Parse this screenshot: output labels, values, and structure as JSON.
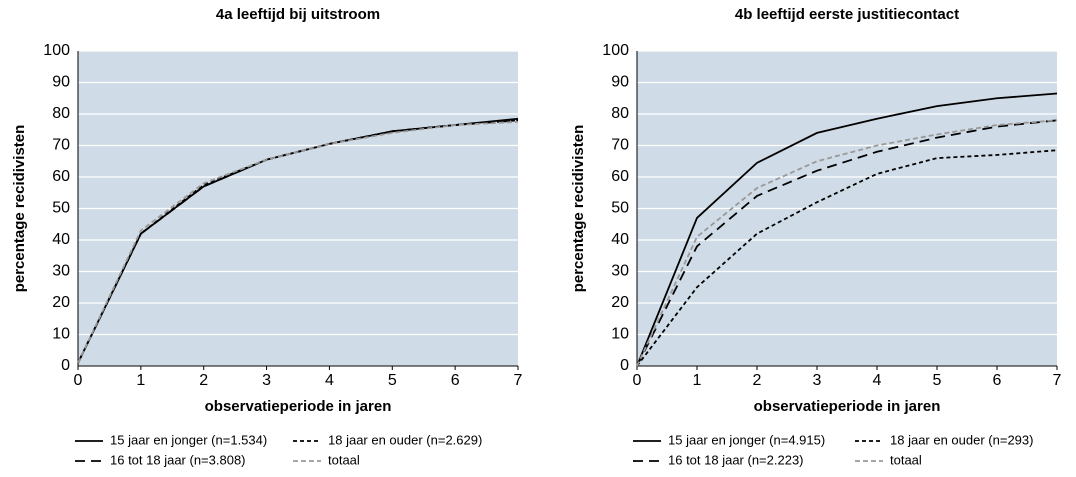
{
  "chart_data": [
    {
      "type": "line",
      "title": "4a  leeftijd bij uitstroom",
      "x_label": "observatieperiode in jaren",
      "y_label": "percentage recidivisten",
      "x": [
        0,
        1,
        2,
        3,
        4,
        5,
        6,
        7
      ],
      "xlim": [
        0,
        7
      ],
      "xticks": [
        0,
        1,
        2,
        3,
        4,
        5,
        6,
        7
      ],
      "ylim": [
        0,
        100
      ],
      "yticks": [
        0,
        10,
        20,
        30,
        40,
        50,
        60,
        70,
        80,
        90,
        100
      ],
      "grid": true,
      "background": "#cfdbe6",
      "series": [
        {
          "name": "15 jaar en jonger (n=1.534)",
          "color": "#000000",
          "dash": "none",
          "values": [
            1,
            42,
            57,
            65.5,
            70.5,
            74.5,
            76.5,
            78.5
          ]
        },
        {
          "name": "16 tot 18 jaar (n=3.808)",
          "color": "#000000",
          "dash": "10 6",
          "values": [
            1,
            42,
            57,
            65.5,
            70.5,
            74.5,
            76.5,
            78
          ]
        },
        {
          "name": "18 jaar en ouder (n=2.629)",
          "color": "#000000",
          "dash": "4 3",
          "values": [
            1,
            42,
            57.5,
            65.5,
            70.5,
            74.5,
            76.5,
            78
          ]
        },
        {
          "name": "totaal",
          "color": "#999999",
          "dash": "5 3",
          "values": [
            1,
            43,
            58,
            65.5,
            70.5,
            74,
            76.5,
            77.5
          ]
        }
      ]
    },
    {
      "type": "line",
      "title": "4b  leeftijd eerste justitiecontact",
      "x_label": "observatieperiode in jaren",
      "y_label": "percentage recidivisten",
      "x": [
        0,
        1,
        2,
        3,
        4,
        5,
        6,
        7
      ],
      "xlim": [
        0,
        7
      ],
      "xticks": [
        0,
        1,
        2,
        3,
        4,
        5,
        6,
        7
      ],
      "ylim": [
        0,
        100
      ],
      "yticks": [
        0,
        10,
        20,
        30,
        40,
        50,
        60,
        70,
        80,
        90,
        100
      ],
      "grid": true,
      "background": "#cfdbe6",
      "series": [
        {
          "name": "15 jaar en jonger (n=4.915)",
          "color": "#000000",
          "dash": "none",
          "values": [
            0,
            47,
            64.5,
            74,
            78.5,
            82.5,
            85,
            86.5
          ]
        },
        {
          "name": "16 tot 18 jaar (n=2.223)",
          "color": "#000000",
          "dash": "10 6",
          "values": [
            0,
            38,
            54,
            62,
            68,
            72.5,
            76,
            78
          ]
        },
        {
          "name": "18 jaar en ouder (n=293)",
          "color": "#000000",
          "dash": "4 3",
          "values": [
            0,
            25,
            42,
            52,
            61,
            66,
            67,
            68.5
          ]
        },
        {
          "name": "totaal",
          "color": "#999999",
          "dash": "5 3",
          "values": [
            0,
            41,
            56.5,
            65,
            70,
            73.5,
            76.5,
            78
          ]
        }
      ]
    }
  ]
}
